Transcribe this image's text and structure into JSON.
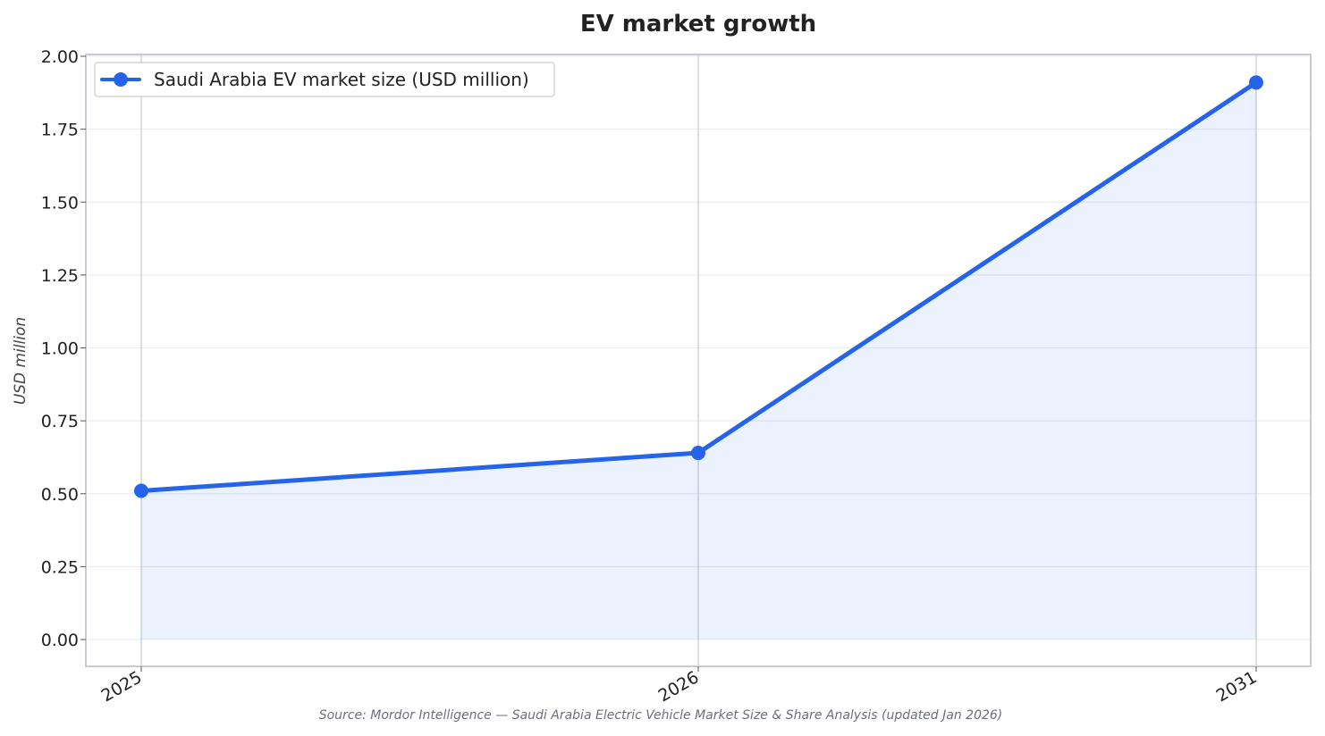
{
  "chart_data": {
    "type": "line",
    "title": "EV market growth",
    "xlabel": "",
    "ylabel": "USD million",
    "categories": [
      "2025",
      "2026",
      "2031"
    ],
    "series": [
      {
        "name": "Saudi Arabia EV market size (USD million)",
        "values": [
          0.51,
          0.64,
          1.91
        ],
        "color": "#2563eb"
      }
    ],
    "ylim": [
      -0.09,
      2.0
    ],
    "yticks": [
      "0.00",
      "0.25",
      "0.50",
      "0.75",
      "1.00",
      "1.25",
      "1.50",
      "1.75",
      "2.00"
    ],
    "ytick_values": [
      0,
      0.25,
      0.5,
      0.75,
      1.0,
      1.25,
      1.5,
      1.75,
      2.0
    ],
    "grid": true,
    "area_fill": true,
    "legend_position": "top-left",
    "source": "Source: Mordor Intelligence — Saudi Arabia Electric Vehicle Market Size & Share Analysis (updated Jan 2026)"
  }
}
